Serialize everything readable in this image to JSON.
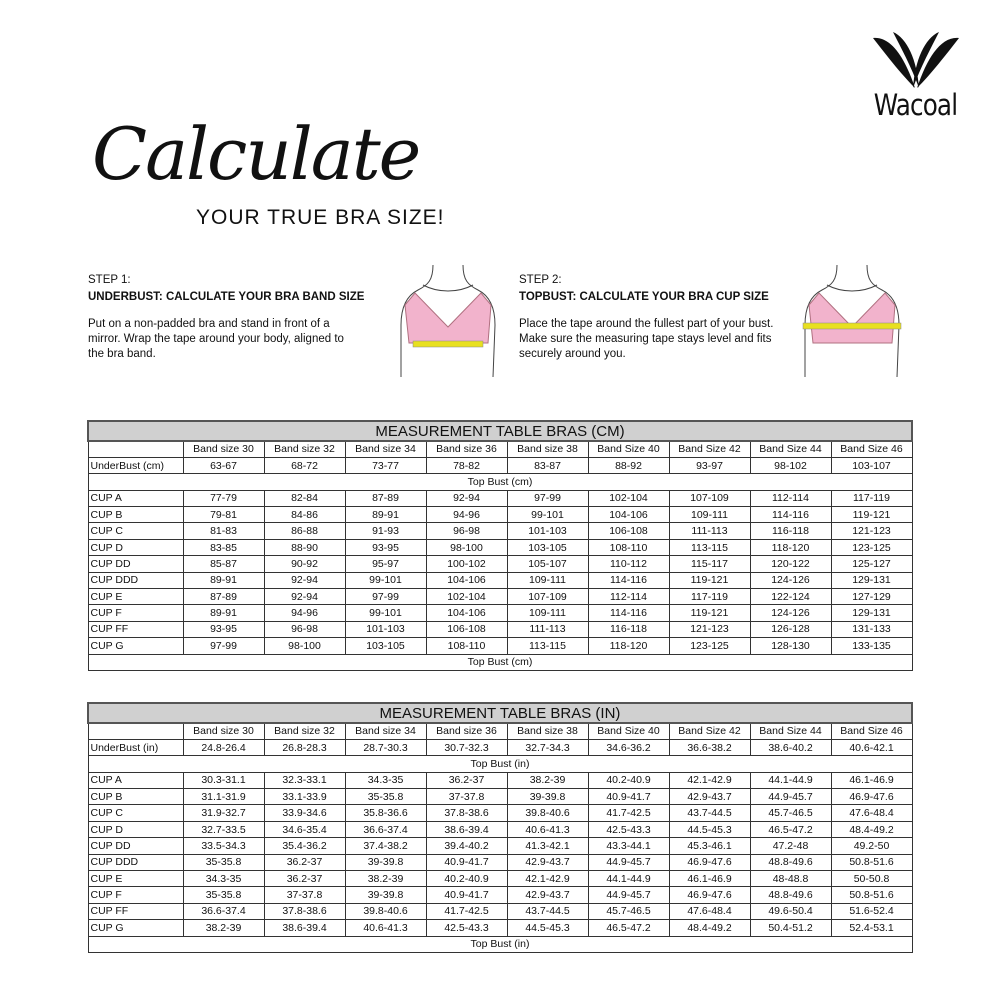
{
  "brand": {
    "name": "Wacoal"
  },
  "heading": {
    "script": "Calculate",
    "subtitle": "YOUR TRUE BRA SIZE!"
  },
  "steps": [
    {
      "label": "STEP 1:",
      "title": "UNDERBUST: CALCULATE YOUR BRA BAND SIZE",
      "body": "Put on a non-padded bra and stand in front of a mirror. Wrap the tape around your body, aligned to the bra band."
    },
    {
      "label": "STEP 2:",
      "title": "TOPBUST: CALCULATE YOUR BRA CUP SIZE",
      "body": "Place the tape around the fullest part of your bust. Make sure the measuring tape stays level and fits securely around you."
    }
  ],
  "colors": {
    "bra": "#f2b3cc",
    "tape": "#e8e020",
    "header_bg": "#d0d0d0"
  },
  "tables": [
    {
      "title": "MEASUREMENT TABLE BRAS (CM)",
      "columns": [
        "Band size 30",
        "Band size 32",
        "Band size 34",
        "Band size 36",
        "Band size 38",
        "Band Size 40",
        "Band Size 42",
        "Band Size 44",
        "Band Size 46"
      ],
      "underbust": {
        "label": "UnderBust (cm)",
        "values": [
          "63-67",
          "68-72",
          "73-77",
          "78-82",
          "83-87",
          "88-92",
          "93-97",
          "98-102",
          "103-107"
        ]
      },
      "section_label": "Top Bust (cm)",
      "rows": [
        {
          "cup": "CUP A",
          "values": [
            "77-79",
            "82-84",
            "87-89",
            "92-94",
            "97-99",
            "102-104",
            "107-109",
            "112-114",
            "117-119"
          ]
        },
        {
          "cup": "CUP B",
          "values": [
            "79-81",
            "84-86",
            "89-91",
            "94-96",
            "99-101",
            "104-106",
            "109-111",
            "114-116",
            "119-121"
          ]
        },
        {
          "cup": "CUP C",
          "values": [
            "81-83",
            "86-88",
            "91-93",
            "96-98",
            "101-103",
            "106-108",
            "111-113",
            "116-118",
            "121-123"
          ]
        },
        {
          "cup": "CUP D",
          "values": [
            "83-85",
            "88-90",
            "93-95",
            "98-100",
            "103-105",
            "108-110",
            "113-115",
            "118-120",
            "123-125"
          ]
        },
        {
          "cup": "CUP DD",
          "values": [
            "85-87",
            "90-92",
            "95-97",
            "100-102",
            "105-107",
            "110-112",
            "115-117",
            "120-122",
            "125-127"
          ]
        },
        {
          "cup": "CUP DDD",
          "values": [
            "89-91",
            "92-94",
            "99-101",
            "104-106",
            "109-111",
            "114-116",
            "119-121",
            "124-126",
            "129-131"
          ]
        },
        {
          "cup": "CUP E",
          "values": [
            "87-89",
            "92-94",
            "97-99",
            "102-104",
            "107-109",
            "112-114",
            "117-119",
            "122-124",
            "127-129"
          ]
        },
        {
          "cup": "CUP F",
          "values": [
            "89-91",
            "94-96",
            "99-101",
            "104-106",
            "109-111",
            "114-116",
            "119-121",
            "124-126",
            "129-131"
          ]
        },
        {
          "cup": "CUP FF",
          "values": [
            "93-95",
            "96-98",
            "101-103",
            "106-108",
            "111-113",
            "116-118",
            "121-123",
            "126-128",
            "131-133"
          ]
        },
        {
          "cup": "CUP G",
          "values": [
            "97-99",
            "98-100",
            "103-105",
            "108-110",
            "113-115",
            "118-120",
            "123-125",
            "128-130",
            "133-135"
          ]
        }
      ],
      "footer": "Top Bust (cm)"
    },
    {
      "title": "MEASUREMENT TABLE BRAS (IN)",
      "columns": [
        "Band size 30",
        "Band size 32",
        "Band size 34",
        "Band size 36",
        "Band size 38",
        "Band Size 40",
        "Band Size 42",
        "Band Size 44",
        "Band Size 46"
      ],
      "underbust": {
        "label": "UnderBust (in)",
        "values": [
          "24.8-26.4",
          "26.8-28.3",
          "28.7-30.3",
          "30.7-32.3",
          "32.7-34.3",
          "34.6-36.2",
          "36.6-38.2",
          "38.6-40.2",
          "40.6-42.1"
        ]
      },
      "section_label": "Top Bust (in)",
      "rows": [
        {
          "cup": "CUP A",
          "values": [
            "30.3-31.1",
            "32.3-33.1",
            "34.3-35",
            "36.2-37",
            "38.2-39",
            "40.2-40.9",
            "42.1-42.9",
            "44.1-44.9",
            "46.1-46.9"
          ]
        },
        {
          "cup": "CUP B",
          "values": [
            "31.1-31.9",
            "33.1-33.9",
            "35-35.8",
            "37-37.8",
            "39-39.8",
            "40.9-41.7",
            "42.9-43.7",
            "44.9-45.7",
            "46.9-47.6"
          ]
        },
        {
          "cup": "CUP C",
          "values": [
            "31.9-32.7",
            "33.9-34.6",
            "35.8-36.6",
            "37.8-38.6",
            "39.8-40.6",
            "41.7-42.5",
            "43.7-44.5",
            "45.7-46.5",
            "47.6-48.4"
          ]
        },
        {
          "cup": "CUP D",
          "values": [
            "32.7-33.5",
            "34.6-35.4",
            "36.6-37.4",
            "38.6-39.4",
            "40.6-41.3",
            "42.5-43.3",
            "44.5-45.3",
            "46.5-47.2",
            "48.4-49.2"
          ]
        },
        {
          "cup": "CUP DD",
          "values": [
            "33.5-34.3",
            "35.4-36.2",
            "37.4-38.2",
            "39.4-40.2",
            "41.3-42.1",
            "43.3-44.1",
            "45.3-46.1",
            "47.2-48",
            "49.2-50"
          ]
        },
        {
          "cup": "CUP DDD",
          "values": [
            "35-35.8",
            "36.2-37",
            "39-39.8",
            "40.9-41.7",
            "42.9-43.7",
            "44.9-45.7",
            "46.9-47.6",
            "48.8-49.6",
            "50.8-51.6"
          ]
        },
        {
          "cup": "CUP E",
          "values": [
            "34.3-35",
            "36.2-37",
            "38.2-39",
            "40.2-40.9",
            "42.1-42.9",
            "44.1-44.9",
            "46.1-46.9",
            "48-48.8",
            "50-50.8"
          ]
        },
        {
          "cup": "CUP F",
          "values": [
            "35-35.8",
            "37-37.8",
            "39-39.8",
            "40.9-41.7",
            "42.9-43.7",
            "44.9-45.7",
            "46.9-47.6",
            "48.8-49.6",
            "50.8-51.6"
          ]
        },
        {
          "cup": "CUP FF",
          "values": [
            "36.6-37.4",
            "37.8-38.6",
            "39.8-40.6",
            "41.7-42.5",
            "43.7-44.5",
            "45.7-46.5",
            "47.6-48.4",
            "49.6-50.4",
            "51.6-52.4"
          ]
        },
        {
          "cup": "CUP G",
          "values": [
            "38.2-39",
            "38.6-39.4",
            "40.6-41.3",
            "42.5-43.3",
            "44.5-45.3",
            "46.5-47.2",
            "48.4-49.2",
            "50.4-51.2",
            "52.4-53.1"
          ]
        }
      ],
      "footer": "Top Bust (in)"
    }
  ]
}
